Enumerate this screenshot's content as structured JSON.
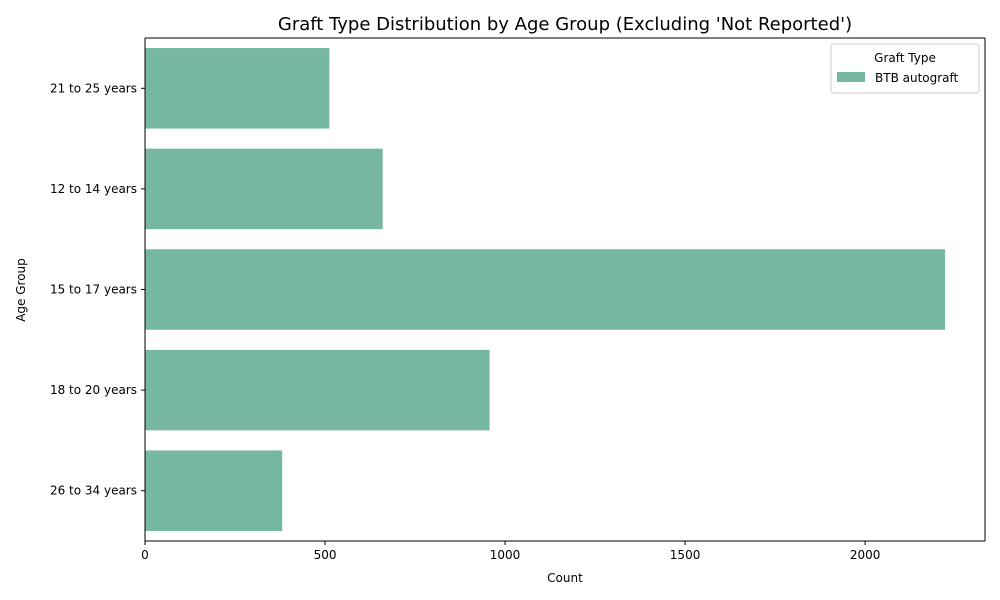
{
  "chart_data": {
    "type": "bar",
    "orientation": "horizontal",
    "title": "Graft Type Distribution by Age Group (Excluding 'Not Reported')",
    "xlabel": "Count",
    "ylabel": "Age Group",
    "categories": [
      "21 to 25 years",
      "12 to 14 years",
      "15 to 17 years",
      "18 to 20 years",
      "26 to 34 years"
    ],
    "series": [
      {
        "name": "BTB autograft",
        "values": [
          512,
          660,
          2222,
          957,
          381
        ],
        "color": "#75b7a0"
      }
    ],
    "xlim": [
      0,
      2333
    ],
    "xticks": [
      0,
      500,
      1000,
      1500,
      2000
    ],
    "grid": false,
    "legend": {
      "title": "Graft Type",
      "placement": "top-right"
    }
  }
}
